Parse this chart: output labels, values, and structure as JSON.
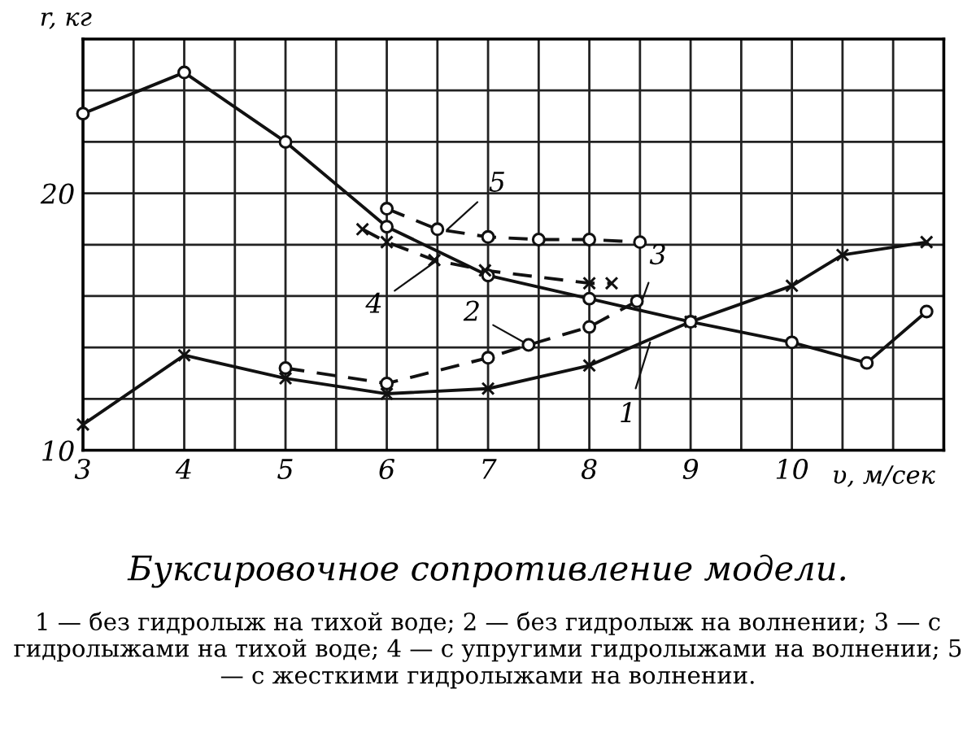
{
  "chart_data": {
    "type": "line",
    "title": "Буксировочное сопротивление модели.",
    "xlabel": "υ, м/сек",
    "ylabel": "r, кг",
    "xlim": [
      3,
      11.5
    ],
    "ylim": [
      10,
      26
    ],
    "xticks": [
      3,
      {
        "value": 3.5,
        "label": null
      },
      4,
      {
        "value": 4.5,
        "label": null
      },
      5,
      {
        "value": 5.5,
        "label": null
      },
      6,
      {
        "value": 6.5,
        "label": null
      },
      7,
      {
        "value": 7.5,
        "label": null
      },
      8,
      {
        "value": 8.5,
        "label": null
      },
      9,
      {
        "value": 9.5,
        "label": null
      },
      10,
      {
        "value": 10.5,
        "label": null
      },
      {
        "value": 11,
        "label": null
      }
    ],
    "yticks": [
      10,
      {
        "value": 12,
        "label": null
      },
      {
        "value": 14,
        "label": null
      },
      {
        "value": 16,
        "label": null
      },
      {
        "value": 18,
        "label": null
      },
      20,
      {
        "value": 22,
        "label": null
      },
      {
        "value": 24,
        "label": null
      }
    ],
    "grid": true,
    "series": [
      {
        "color": "#111111",
        "line_style": "solid",
        "marker": "cross",
        "x": [
          3,
          4,
          5,
          6,
          7,
          8,
          9,
          10,
          10.5,
          11.33
        ],
        "values": [
          11.0,
          13.7,
          12.8,
          12.2,
          12.4,
          13.3,
          15.0,
          16.4,
          17.6,
          18.1
        ]
      },
      {
        "color": "#111111",
        "line_style": "dashed",
        "marker": "circle",
        "x": [
          5,
          6,
          7,
          7.4,
          8,
          8.47
        ],
        "values": [
          13.2,
          12.6,
          13.6,
          14.1,
          14.8,
          15.8
        ]
      },
      {
        "color": "#111111",
        "line_style": "solid",
        "marker": "circle",
        "x": [
          3,
          4,
          5,
          6,
          7,
          8,
          9,
          10,
          10.74,
          11.33
        ],
        "values": [
          23.1,
          24.7,
          22.0,
          18.7,
          16.8,
          15.9,
          15.0,
          14.2,
          13.4,
          15.4
        ]
      },
      {
        "color": "#111111",
        "line_style": "dashed",
        "marker": "cross",
        "x": [
          5.76,
          6,
          6.47,
          6.97,
          8,
          8.22
        ],
        "values": [
          18.6,
          18.1,
          17.4,
          17.0,
          16.5,
          16.5
        ]
      },
      {
        "color": "#111111",
        "line_style": "dashed",
        "marker": "circle",
        "x": [
          6,
          6.5,
          7,
          7.5,
          8,
          8.5
        ],
        "values": [
          19.4,
          18.6,
          18.3,
          18.2,
          18.2,
          18.1
        ]
      }
    ],
    "annotations": [
      {
        "text": "1",
        "x": 8.6,
        "y": 14.2
      },
      {
        "text": "2",
        "x": 7.4,
        "y": 14.1
      },
      {
        "text": "3",
        "x": 8.5,
        "y": 15.6
      },
      {
        "text": "4",
        "x": 6.5,
        "y": 17.4
      },
      {
        "text": "5",
        "x": 6.6,
        "y": 18.6
      },
      "1 — без гидролыж на тихой воде; 2 — без гидролыж на волнении; 3 — с гидролыжами на тихой воде; 4 — с упругими гидролыжами на волнении; 5 — с жесткими гидролыжами на волнении."
    ]
  }
}
